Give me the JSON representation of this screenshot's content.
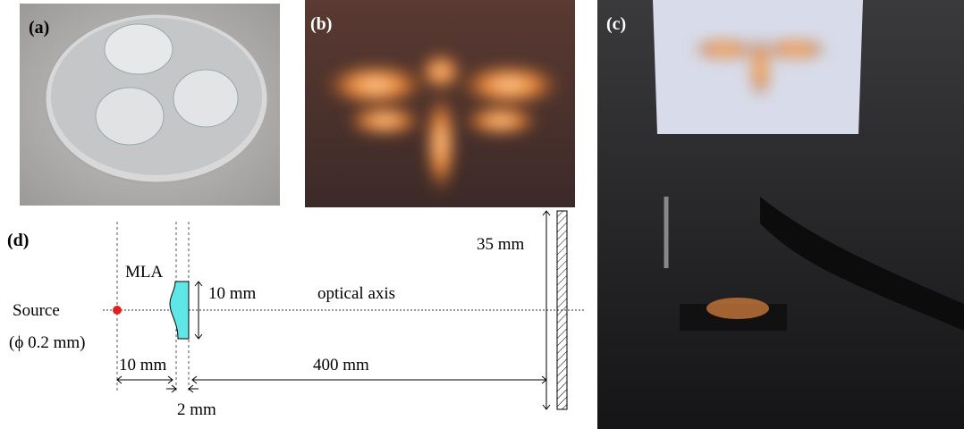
{
  "panels": [
    {
      "label": "(a)"
    },
    {
      "label": "(b)"
    },
    {
      "label": "(c)"
    },
    {
      "label": "(d)"
    }
  ],
  "diagram": {
    "lens_label": "MLA",
    "lens_height": "10 mm",
    "axis_label": "optical axis",
    "source_label": "Source",
    "source_size": "(ϕ 0.2 mm)",
    "screen_height": "35 mm",
    "source_to_lens": "10 mm",
    "lens_to_screen": "400 mm",
    "lens_thickness": "2 mm"
  }
}
